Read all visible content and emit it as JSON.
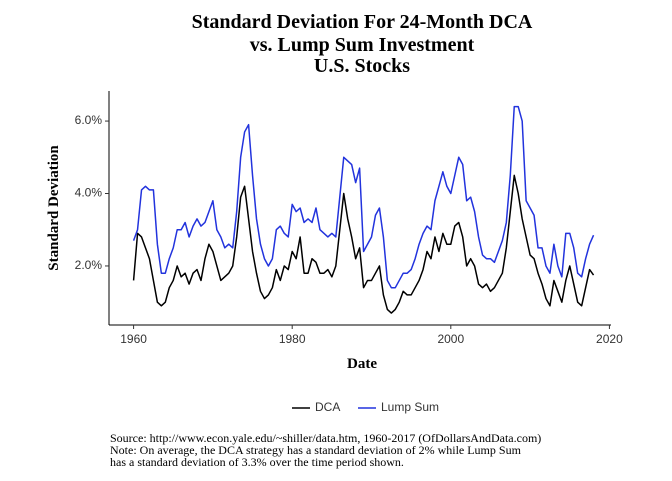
{
  "chart_data": {
    "type": "line",
    "title": [
      "Standard Deviation For 24-Month DCA",
      "vs. Lump Sum Investment",
      "U.S. Stocks"
    ],
    "y_label": "Standard Deviation",
    "x_label": "Date",
    "source": "Source:  http://www.econ.yale.edu/~shiller/data.htm, 1960-2017 (OfDollarsAndData.com)",
    "note": [
      "Note: On average, the DCA strategy has a standard deviation of 2% while Lump Sum",
      "has a standard deviation of 3.3% over the time period shown."
    ],
    "legend": "bottom",
    "xlim": [
      1956.9,
      2020.2
    ],
    "ylim": [
      0.37,
      6.83
    ],
    "xticks": [
      1960,
      1980,
      2000,
      2020
    ],
    "yticks": [
      {
        "value": 2,
        "label": "2.0%"
      },
      {
        "value": 4,
        "label": "4.0%"
      },
      {
        "value": 6,
        "label": "6.0%"
      }
    ],
    "x": [
      1960,
      1960.5,
      1961,
      1961.5,
      1962,
      1962.5,
      1963,
      1963.5,
      1964,
      1964.5,
      1965,
      1965.5,
      1966,
      1966.5,
      1967,
      1967.5,
      1968,
      1968.5,
      1969,
      1969.5,
      1970,
      1970.5,
      1971,
      1971.5,
      1972,
      1972.5,
      1973,
      1973.5,
      1974,
      1974.5,
      1975,
      1975.5,
      1976,
      1976.5,
      1977,
      1977.5,
      1978,
      1978.5,
      1979,
      1979.5,
      1980,
      1980.5,
      1981,
      1981.5,
      1982,
      1982.5,
      1983,
      1983.5,
      1984,
      1984.5,
      1985,
      1985.5,
      1986,
      1986.5,
      1987,
      1987.5,
      1988,
      1988.5,
      1989,
      1989.5,
      1990,
      1990.5,
      1991,
      1991.5,
      1992,
      1992.5,
      1993,
      1993.5,
      1994,
      1994.5,
      1995,
      1995.5,
      1996,
      1996.5,
      1997,
      1997.5,
      1998,
      1998.5,
      1999,
      1999.5,
      2000,
      2000.5,
      2001,
      2001.5,
      2002,
      2002.5,
      2003,
      2003.5,
      2004,
      2004.5,
      2005,
      2005.5,
      2006,
      2006.5,
      2007,
      2007.5,
      2008,
      2008.5,
      2009,
      2009.5,
      2010,
      2010.5,
      2011,
      2011.5,
      2012,
      2012.5,
      2013,
      2013.5,
      2014,
      2014.5,
      2015,
      2015.5,
      2016,
      2016.5,
      2017,
      2017.5,
      2018
    ],
    "series": [
      {
        "name": "DCA",
        "color": "#000000",
        "values": [
          1.6,
          2.9,
          2.8,
          2.5,
          2.2,
          1.6,
          1.0,
          0.9,
          1.0,
          1.4,
          1.6,
          2.0,
          1.7,
          1.8,
          1.5,
          1.8,
          1.9,
          1.6,
          2.2,
          2.6,
          2.4,
          2.0,
          1.6,
          1.7,
          1.8,
          2.0,
          2.8,
          3.9,
          4.2,
          3.3,
          2.4,
          1.8,
          1.3,
          1.1,
          1.2,
          1.4,
          1.9,
          1.6,
          2.0,
          1.9,
          2.4,
          2.2,
          2.8,
          1.8,
          1.8,
          2.2,
          2.1,
          1.8,
          1.8,
          1.9,
          1.7,
          2.0,
          3.0,
          4.0,
          3.3,
          2.8,
          2.2,
          2.5,
          1.4,
          1.6,
          1.6,
          1.8,
          2.0,
          1.2,
          0.8,
          0.7,
          0.8,
          1.0,
          1.3,
          1.2,
          1.2,
          1.4,
          1.6,
          1.9,
          2.4,
          2.2,
          2.8,
          2.4,
          2.9,
          2.6,
          2.6,
          3.1,
          3.2,
          2.8,
          2.0,
          2.2,
          2.0,
          1.5,
          1.4,
          1.5,
          1.3,
          1.4,
          1.6,
          1.8,
          2.5,
          3.5,
          4.5,
          4.0,
          3.3,
          2.8,
          2.3,
          2.2,
          1.8,
          1.5,
          1.1,
          0.9,
          1.6,
          1.3,
          1.0,
          1.6,
          2.0,
          1.5,
          1.0,
          0.9,
          1.4,
          1.9,
          1.75
        ]
      },
      {
        "name": "Lump Sum",
        "color": "#2233dd",
        "values": [
          2.7,
          3.0,
          4.1,
          4.2,
          4.1,
          4.1,
          2.6,
          1.8,
          1.8,
          2.2,
          2.5,
          3.0,
          3.0,
          3.2,
          2.8,
          3.1,
          3.3,
          3.1,
          3.2,
          3.5,
          3.8,
          3.0,
          2.8,
          2.5,
          2.6,
          2.5,
          3.5,
          5.0,
          5.7,
          5.9,
          4.5,
          3.3,
          2.6,
          2.2,
          2.0,
          2.2,
          3.0,
          3.1,
          2.9,
          2.8,
          3.7,
          3.5,
          3.6,
          3.2,
          3.3,
          3.2,
          3.6,
          3.0,
          2.9,
          2.8,
          2.9,
          2.8,
          3.9,
          5.0,
          4.9,
          4.8,
          4.3,
          4.7,
          2.4,
          2.6,
          2.8,
          3.4,
          3.6,
          2.8,
          1.6,
          1.4,
          1.4,
          1.6,
          1.8,
          1.8,
          1.9,
          2.2,
          2.6,
          2.9,
          3.1,
          3.0,
          3.8,
          4.2,
          4.6,
          4.2,
          4.0,
          4.5,
          5.0,
          4.8,
          3.8,
          3.9,
          3.5,
          2.8,
          2.3,
          2.2,
          2.2,
          2.1,
          2.4,
          2.7,
          3.2,
          4.5,
          6.4,
          6.4,
          6.0,
          3.8,
          3.6,
          3.4,
          2.5,
          2.5,
          2.0,
          1.8,
          2.6,
          2.0,
          1.7,
          2.9,
          2.9,
          2.5,
          1.8,
          1.7,
          2.2,
          2.6,
          2.85
        ]
      }
    ]
  }
}
